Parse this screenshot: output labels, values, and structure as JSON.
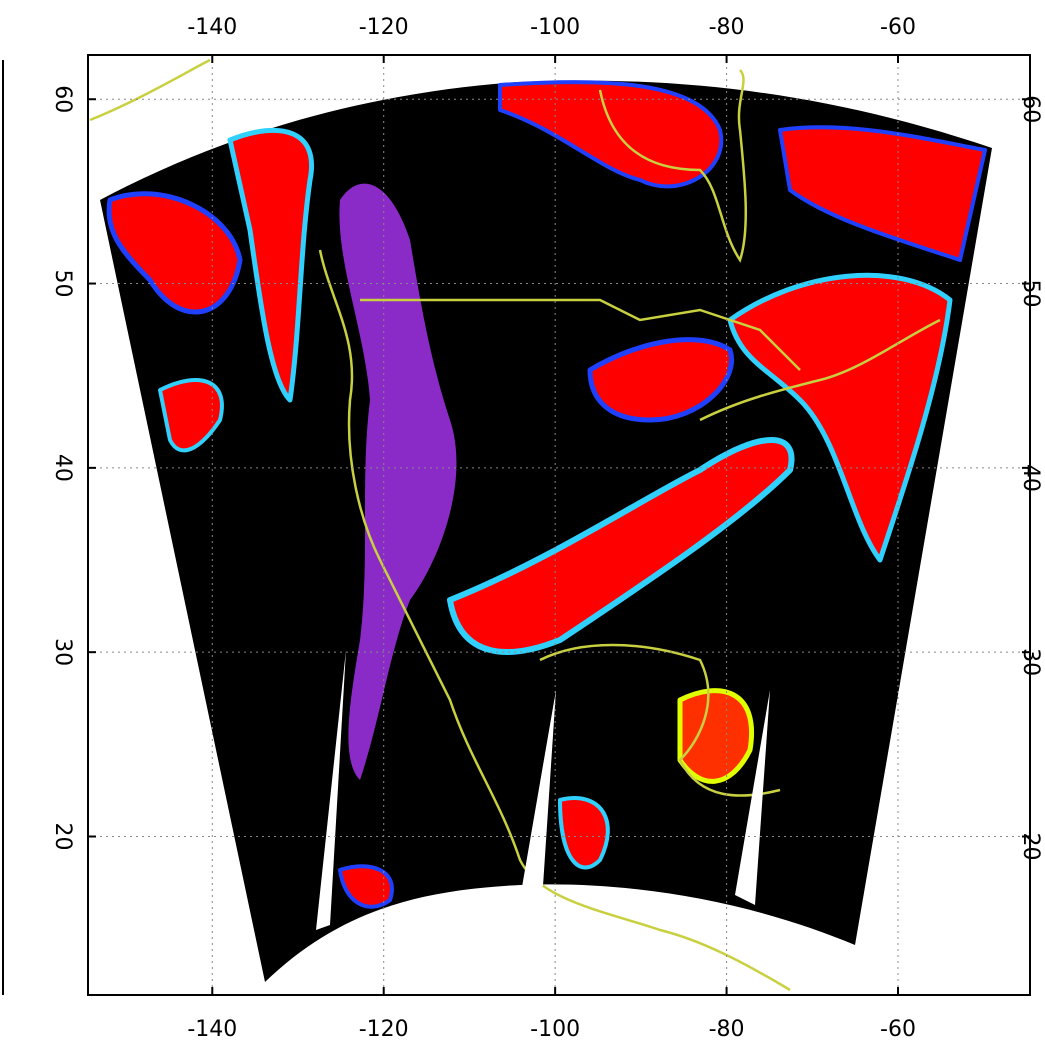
{
  "chart_data": {
    "type": "map",
    "xlim": [
      -154.5,
      -44.6
    ],
    "ylim": [
      11.4,
      62.4
    ],
    "xticks": [
      -140,
      -120,
      -100,
      -80,
      -60
    ],
    "yticks": [
      20,
      30,
      40,
      50,
      60
    ],
    "grid": true
  }
}
